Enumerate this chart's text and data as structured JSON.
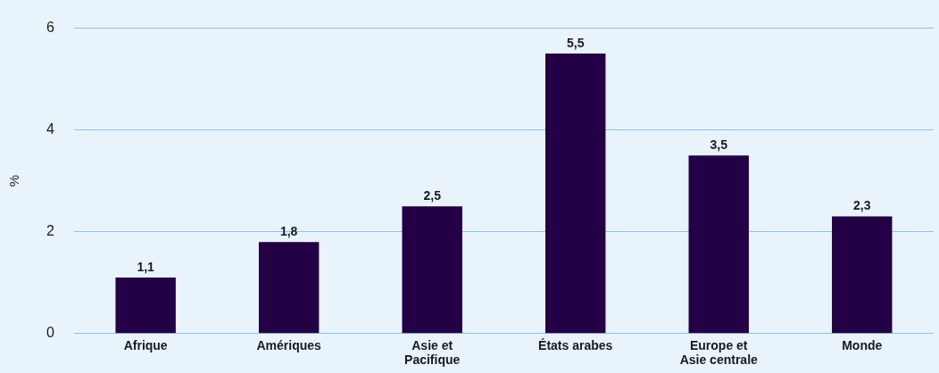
{
  "chart_data": {
    "type": "bar",
    "ylabel": "%",
    "categories": [
      "Afrique",
      "Amériques",
      "Asie et Pacifique",
      "États arabes",
      "Europe et Asie centrale",
      "Monde"
    ],
    "values": [
      1.1,
      1.8,
      2.5,
      5.5,
      3.5,
      2.3
    ],
    "color": "#230046",
    "value_labels": [
      "1,1",
      "1,8",
      "2,5",
      "5,5",
      "3,5",
      "2,3"
    ],
    "ylim": [
      0,
      6
    ],
    "yticks": [
      0,
      2,
      4,
      6
    ],
    "grid": "y"
  }
}
